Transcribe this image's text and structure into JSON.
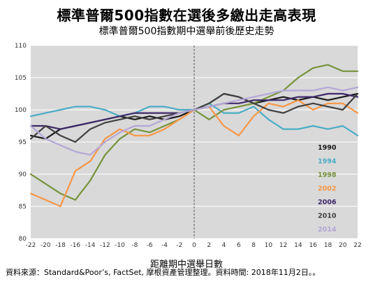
{
  "title": "標準普爾500指數在選後多繳出走高表現",
  "subtitle": "標準普爾500指數期中選舉前後歷史走勢",
  "source": "資料來源：Standard&Poor’s, FactSet, 摩根資產管理整理。資料時間: 2018年11月2日。。",
  "chart_data": {
    "type": "line",
    "title": "標準普爾500指數期中選舉前後歷史走勢",
    "xlabel": "距離期中選舉日數",
    "ylabel": "",
    "xlim": [
      -22,
      22
    ],
    "ylim": [
      80,
      110
    ],
    "x_ticks": [
      -22,
      -20,
      -18,
      -16,
      -14,
      -12,
      -10,
      -8,
      -6,
      -4,
      -2,
      0,
      2,
      4,
      6,
      8,
      10,
      12,
      14,
      16,
      18,
      20,
      22
    ],
    "y_ticks": [
      80,
      85,
      90,
      95,
      100,
      105,
      110
    ],
    "grid": "horizontal",
    "legend_position": "right",
    "background": "#d9d9d9",
    "x": [
      -22,
      -20,
      -18,
      -16,
      -14,
      -12,
      -10,
      -8,
      -6,
      -4,
      -2,
      0,
      2,
      4,
      6,
      8,
      10,
      12,
      14,
      16,
      18,
      20,
      22
    ],
    "series": [
      {
        "name": "1990",
        "color": "#1a1a1a",
        "values": [
          96,
          95.5,
          97,
          97.5,
          98,
          98.5,
          99,
          98.5,
          99,
          98.5,
          99,
          100,
          101,
          102.5,
          102,
          101,
          101.5,
          102,
          101.5,
          102,
          101.5,
          102,
          102.5
        ]
      },
      {
        "name": "1994",
        "color": "#4bacc6",
        "values": [
          99,
          99.5,
          100,
          100.5,
          100.5,
          100,
          99,
          99.5,
          100.5,
          100.5,
          100,
          100,
          101,
          99.5,
          99.5,
          100.5,
          98.5,
          97,
          97,
          97.5,
          97,
          97.5,
          96
        ]
      },
      {
        "name": "1998",
        "color": "#77933c",
        "values": [
          90,
          88.5,
          87,
          86,
          89,
          93,
          95.5,
          97,
          96.5,
          97.5,
          98.5,
          100,
          98.5,
          100,
          100.5,
          101,
          102,
          103,
          105,
          106.5,
          107,
          106,
          106
        ]
      },
      {
        "name": "2002",
        "color": "#f79646",
        "values": [
          87,
          86,
          85,
          90.5,
          92,
          95.5,
          97,
          96,
          96,
          97,
          98.5,
          100,
          100.5,
          97.5,
          96,
          99,
          101,
          100.5,
          101.5,
          100,
          101,
          101,
          99.5
        ]
      },
      {
        "name": "2006",
        "color": "#3f2a6b",
        "values": [
          97.5,
          97.5,
          97,
          97.5,
          98,
          98.5,
          99,
          99.5,
          99.5,
          99.5,
          99.5,
          100,
          100.5,
          101,
          101,
          101.5,
          101.5,
          101.5,
          102,
          102,
          102.5,
          102.5,
          102
        ]
      },
      {
        "name": "2010",
        "color": "#404040",
        "values": [
          95.5,
          97.5,
          96,
          95,
          97,
          98,
          98.5,
          99,
          98.5,
          99,
          99.5,
          100,
          101,
          102.5,
          102,
          101,
          100,
          99.5,
          100.5,
          101,
          100.5,
          100,
          102.5
        ]
      },
      {
        "name": "2014",
        "color": "#b4a7d6",
        "values": [
          97.5,
          95.5,
          94.5,
          93.5,
          93,
          95,
          96.5,
          97.5,
          97.5,
          98.5,
          99.5,
          100,
          100.5,
          101,
          101.5,
          102,
          102.5,
          103,
          103,
          103,
          103.5,
          103,
          103.5
        ]
      }
    ]
  }
}
